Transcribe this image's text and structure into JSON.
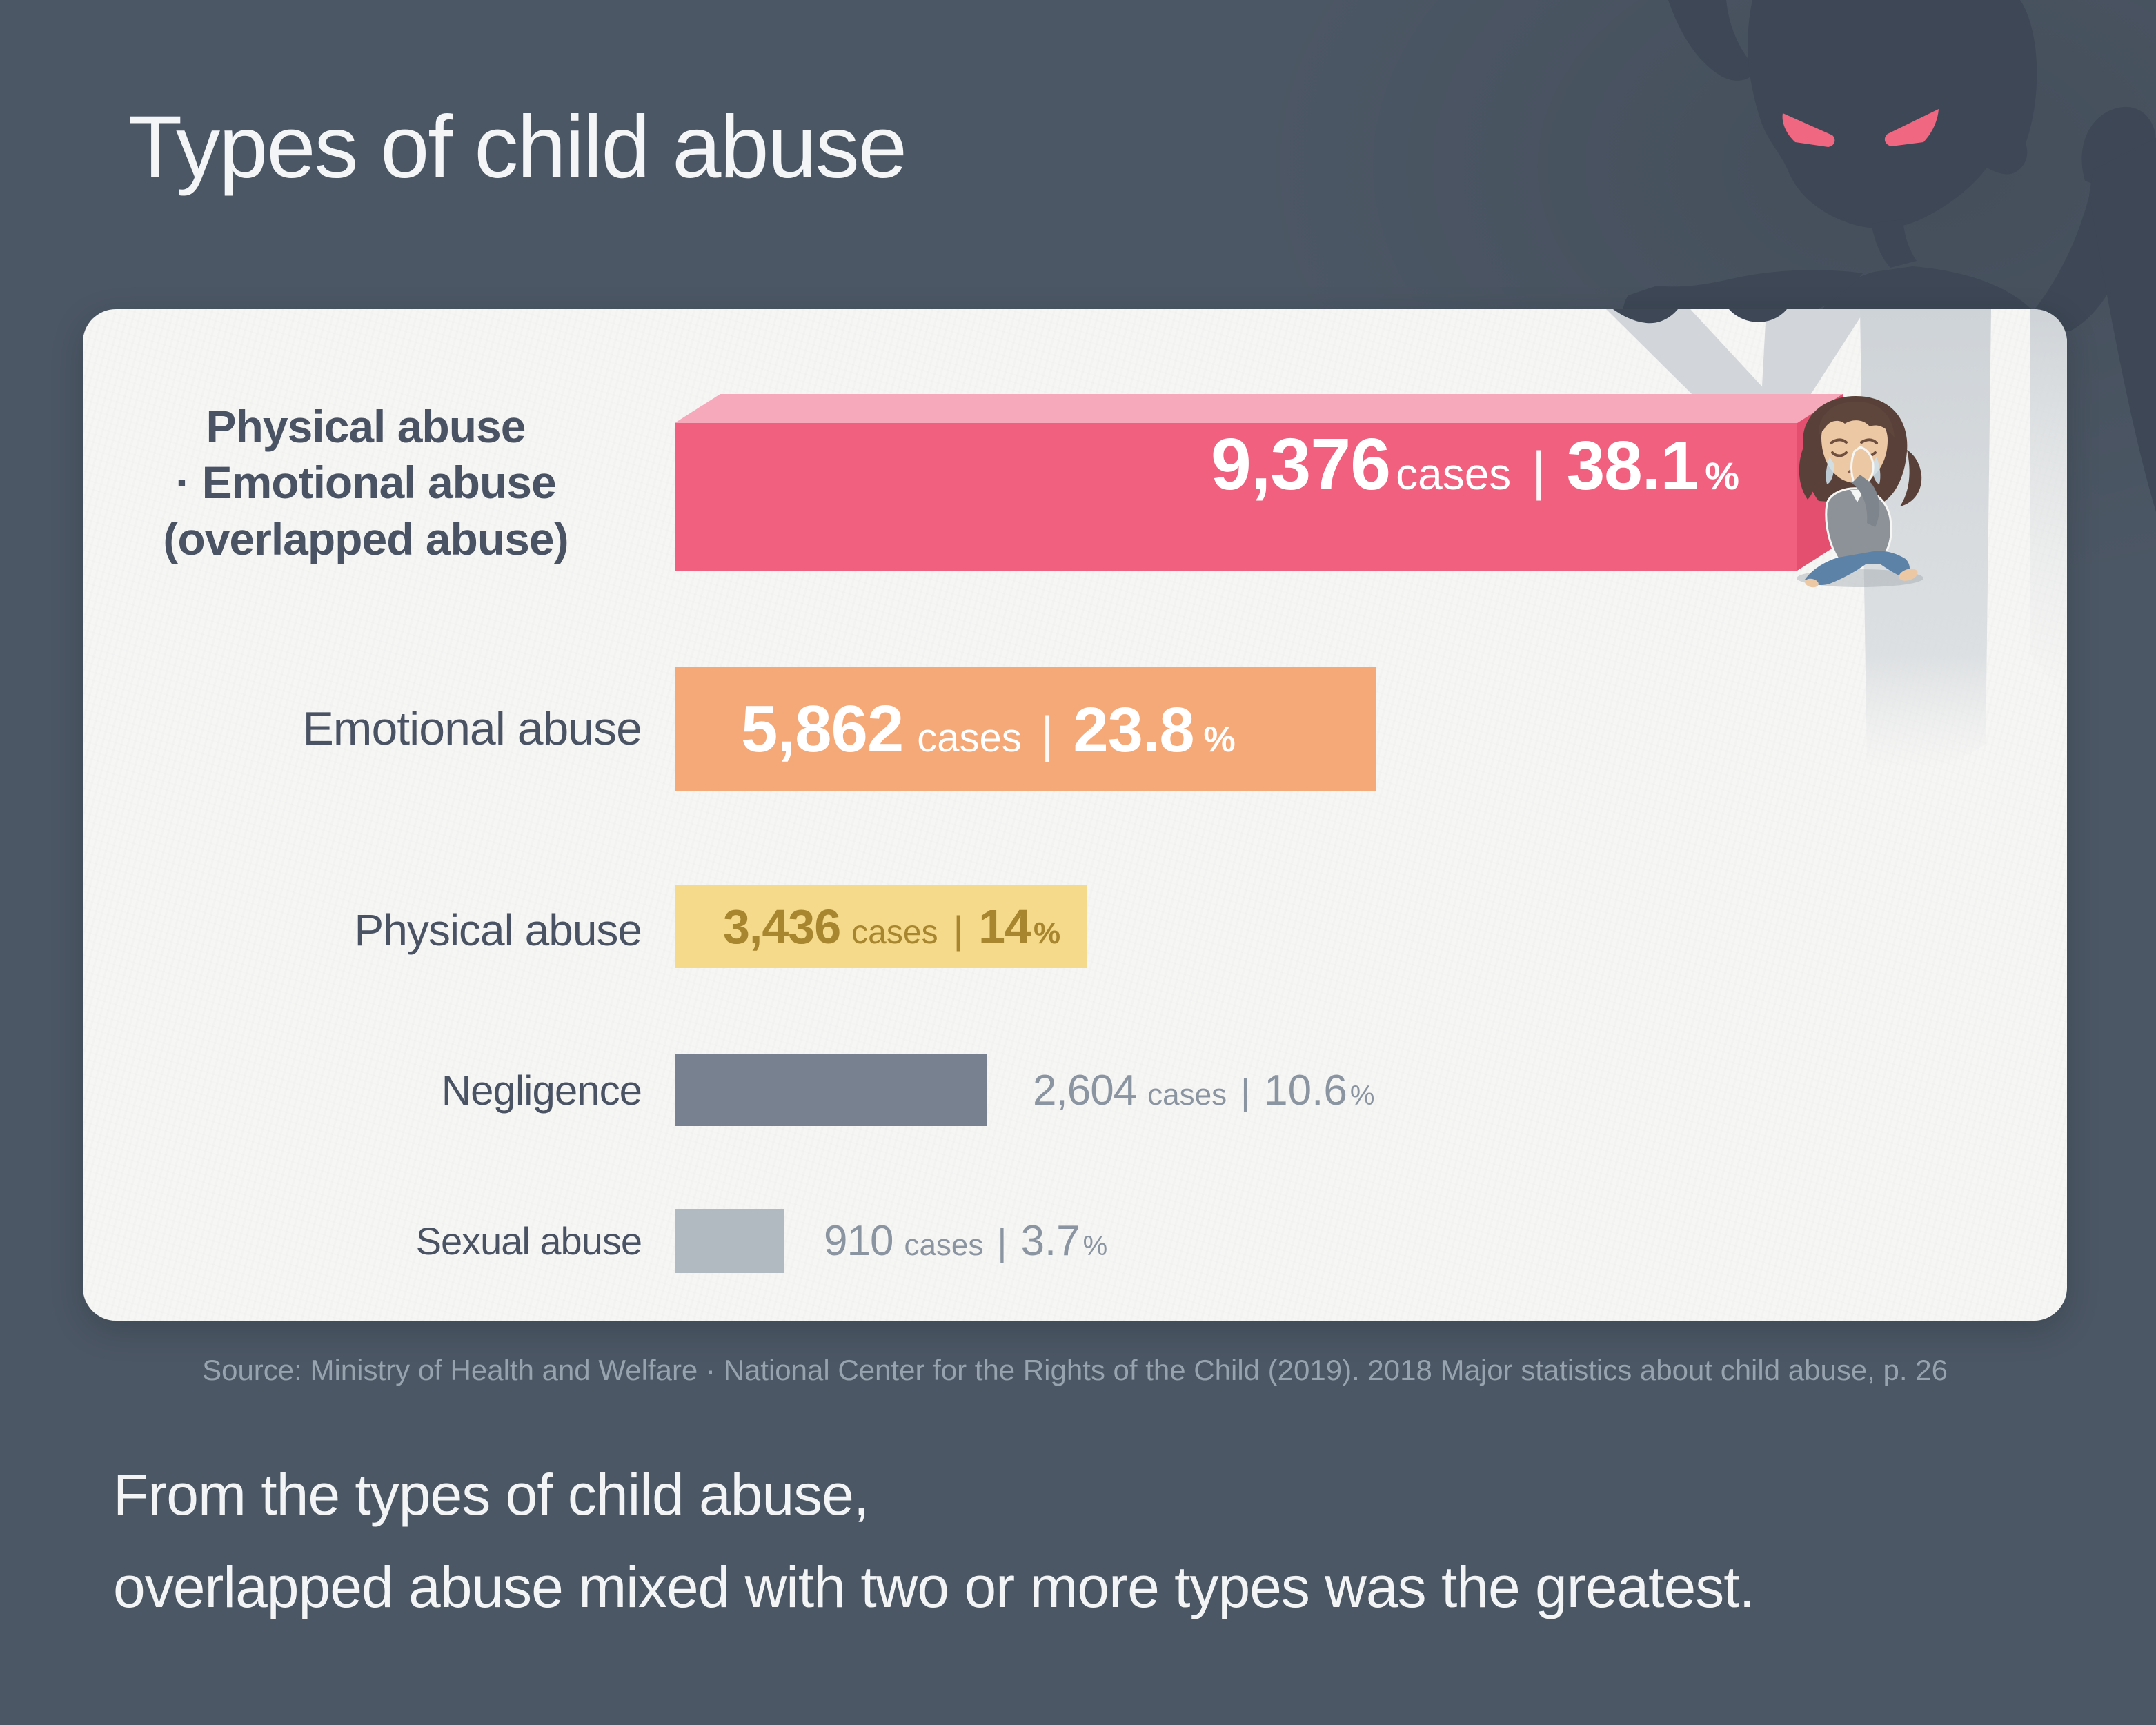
{
  "title": "Types of child abuse",
  "chart_data": {
    "type": "bar",
    "orientation": "horizontal",
    "title": "Types of child abuse",
    "xlabel": "",
    "ylabel": "",
    "legend": "none",
    "grid": false,
    "xlim_percent": [
      0,
      40
    ],
    "categories": [
      "Physical abuse · Emotional abuse (overlapped abuse)",
      "Emotional abuse",
      "Physical abuse",
      "Negligence",
      "Sexual abuse"
    ],
    "series": [
      {
        "name": "cases",
        "values": [
          9376,
          5862,
          3436,
          2604,
          910
        ]
      },
      {
        "name": "percent",
        "values": [
          38.1,
          23.8,
          14,
          10.6,
          3.7
        ]
      }
    ],
    "value_label_format": "{cases} cases | {percent}%"
  },
  "rows": [
    {
      "label_lines": [
        "Physical abuse",
        "· Emotional abuse",
        "(overlapped abuse)"
      ],
      "value": "9,376",
      "unit": "cases",
      "divider": "|",
      "percent": "38.1",
      "percent_sign": "%",
      "bar_color": "#f2607f",
      "bar_top_color": "#f5a9ba",
      "bar_side_color": "#e44f70",
      "text_color": "#ffffff",
      "style": "3d",
      "text_position": "inside-right"
    },
    {
      "label_lines": [
        "Emotional abuse"
      ],
      "value": "5,862",
      "unit": "cases",
      "divider": "|",
      "percent": "23.8",
      "percent_sign": "%",
      "bar_color": "#f6a978",
      "text_color": "#ffffff",
      "style": "flat",
      "text_position": "inside-left"
    },
    {
      "label_lines": [
        "Physical abuse"
      ],
      "value": "3,436",
      "unit": "cases",
      "divider": "|",
      "percent": "14",
      "percent_sign": "%",
      "bar_color": "#f4da8a",
      "text_color": "#a8862f",
      "style": "flat",
      "text_position": "inside-left"
    },
    {
      "label_lines": [
        "Negligence"
      ],
      "value": "2,604",
      "unit": "cases",
      "divider": "|",
      "percent": "10.6",
      "percent_sign": "%",
      "bar_color": "#77818f",
      "text_color": "#8b95a1",
      "style": "flat",
      "text_position": "outside-right"
    },
    {
      "label_lines": [
        "Sexual abuse"
      ],
      "value": "910",
      "unit": "cases",
      "divider": "|",
      "percent": "3.7",
      "percent_sign": "%",
      "bar_color": "#b1b9c1",
      "text_color": "#8b95a1",
      "style": "flat",
      "text_position": "outside-right"
    }
  ],
  "source": "Source: Ministry of Health and Welfare · National Center for the Rights of the Child (2019). 2018 Major statistics about child abuse, p. 26",
  "footer": {
    "line1": "From the types of child abuse,",
    "line2": "overlapped abuse mixed with two or more types was the greatest."
  },
  "colors": {
    "background": "#4c5765",
    "card": "#f6f6f4",
    "accent_pink": "#f2607f",
    "pink_top": "#f5a9ba",
    "pink_side": "#e44f70",
    "orange": "#f6a978",
    "yellow": "#f4da8a",
    "gray_bar": "#77818f",
    "light_gray_bar": "#b1b9c1",
    "label_text": "#4a5364",
    "gold_text": "#a8862f",
    "muted_text": "#8b95a1",
    "source_text": "#97a3ae",
    "silhouette": "#3d4755",
    "eyes_pink": "#ef6780",
    "card_shadow_gray": "#d2d6da",
    "white": "#ffffff"
  },
  "illustrations": {
    "abuser": "menacing shadow figure with pink angry eyes and raised fist",
    "child": "crying child kneeling beside the largest bar"
  }
}
